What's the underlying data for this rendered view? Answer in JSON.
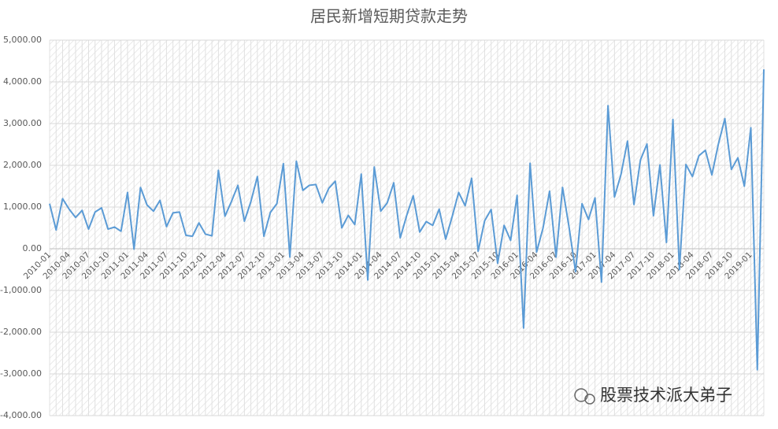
{
  "chart_data": {
    "type": "line",
    "title": "居民新增短期贷款走势",
    "watermark": "股票技术派大弟子",
    "categories": [
      "2010-01",
      null,
      null,
      "2010-04",
      null,
      null,
      "2010-07",
      null,
      null,
      "2010-10",
      null,
      null,
      "2011-01",
      null,
      null,
      "2011-04",
      null,
      null,
      "2011-07",
      null,
      null,
      "2011-10",
      null,
      null,
      "2012-01",
      null,
      null,
      "2012-04",
      null,
      null,
      "2012-07",
      null,
      null,
      "2012-10",
      null,
      null,
      "2013-01",
      null,
      null,
      "2013-04",
      null,
      null,
      "2013-07",
      null,
      null,
      "2013-10",
      null,
      null,
      "2014-01",
      null,
      null,
      "2014-04",
      null,
      null,
      "2014-07",
      null,
      null,
      "2014-10",
      null,
      null,
      "2015-01",
      null,
      null,
      "2015-04",
      null,
      null,
      "2015-07",
      null,
      null,
      "2015-10",
      null,
      null,
      "2016-01",
      null,
      null,
      "2016-04",
      null,
      null,
      "2016-07",
      null,
      null,
      "2016-10",
      null,
      null,
      "2017-01",
      null,
      null,
      "2017-04",
      null,
      null,
      "2017-07",
      null,
      null,
      "2017-10",
      null,
      null,
      "2018-01",
      null,
      null,
      "2018-04",
      null,
      null,
      "2018-07",
      null,
      null,
      "2018-10",
      null,
      null,
      "2019-01",
      null,
      null
    ],
    "values": [
      1080,
      450,
      1200,
      950,
      750,
      920,
      470,
      880,
      980,
      470,
      520,
      420,
      1350,
      -10,
      1470,
      1050,
      900,
      1160,
      530,
      860,
      880,
      320,
      300,
      620,
      350,
      310,
      1880,
      780,
      1130,
      1520,
      660,
      1130,
      1730,
      300,
      870,
      1080,
      2040,
      -200,
      2100,
      1400,
      1520,
      1540,
      1100,
      1450,
      1620,
      500,
      800,
      580,
      1790,
      -750,
      1960,
      900,
      1100,
      1580,
      260,
      800,
      1270,
      400,
      650,
      560,
      950,
      230,
      770,
      1350,
      1030,
      1690,
      -60,
      670,
      940,
      -350,
      560,
      200,
      1280,
      -1900,
      2050,
      -80,
      500,
      1380,
      -200,
      1470,
      520,
      -550,
      1080,
      700,
      1220,
      -800,
      3430,
      1240,
      1780,
      2580,
      1060,
      2130,
      2510,
      790,
      2010,
      150,
      3100,
      -500,
      2020,
      1730,
      2230,
      2360,
      1770,
      2510,
      3120,
      1900,
      2180,
      1500,
      2900,
      -2900,
      4300
    ],
    "color": "#5b9bd5",
    "ylim": [
      -4000,
      5000
    ],
    "yticks": [
      {
        "value": -4000,
        "label": "-4,000.00"
      },
      {
        "value": -3000,
        "label": "-3,000.00"
      },
      {
        "value": -2000,
        "label": "-2,000.00"
      },
      {
        "value": -1000,
        "label": "-1,000.00"
      },
      {
        "value": 0,
        "label": "0.00"
      },
      {
        "value": 1000,
        "label": "1,000.00"
      },
      {
        "value": 2000,
        "label": "2,000.00"
      },
      {
        "value": 3000,
        "label": "3,000.00"
      },
      {
        "value": 4000,
        "label": "4,000.00"
      },
      {
        "value": 5000,
        "label": "5,000.00"
      }
    ],
    "grid": true
  }
}
